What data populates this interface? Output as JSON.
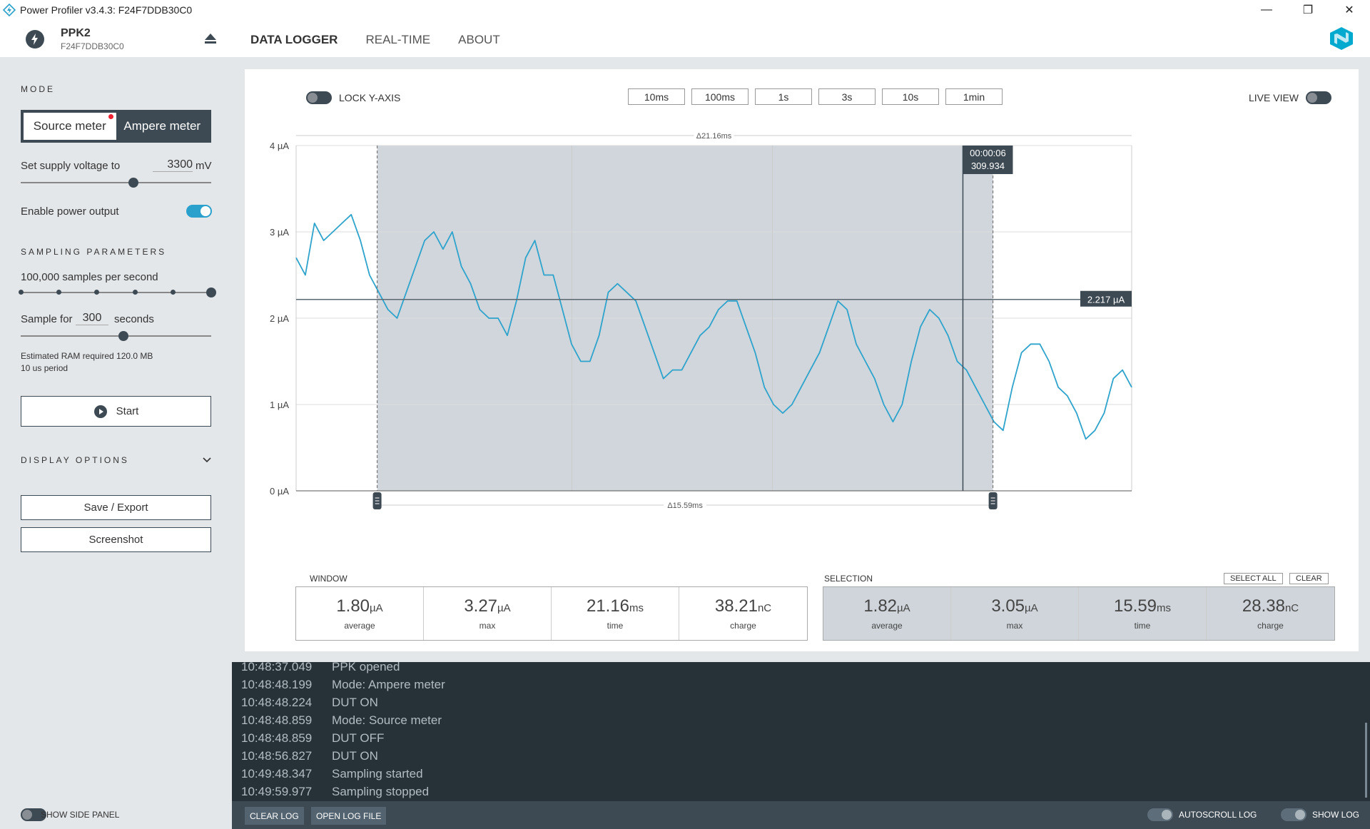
{
  "window": {
    "title": "Power Profiler v3.4.3: F24F7DDB30C0",
    "minimize": "—",
    "restore": "❐",
    "close": "✕"
  },
  "header": {
    "device_name": "PPK2",
    "device_serial": "F24F7DDB30C0",
    "tabs": [
      "DATA LOGGER",
      "REAL-TIME",
      "ABOUT"
    ],
    "active_tab": "DATA LOGGER"
  },
  "side": {
    "mode_title": "MODE",
    "mode_source": "Source meter",
    "mode_ampere": "Ampere meter",
    "supply_label": "Set supply voltage to",
    "supply_value": "3300",
    "supply_unit": "mV",
    "supply_slider_fraction": 0.59,
    "enable_power_label": "Enable power output",
    "enable_power_on": true,
    "sampling_title": "SAMPLING PARAMETERS",
    "samples_label": "100,000 samples per second",
    "samples_steps": 6,
    "samples_selected_step": 5,
    "sample_for_label": "Sample for",
    "sample_for_value": "300",
    "sample_for_unit": "seconds",
    "sample_for_fraction": 0.54,
    "ram_text": "Estimated RAM required 120.0 MB",
    "period_text": "10 us period",
    "start_label": "Start",
    "display_title": "DISPLAY OPTIONS",
    "save_label": "Save / Export",
    "screenshot_label": "Screenshot"
  },
  "chart_toolbar": {
    "lock_y_label": "LOCK Y-AXIS",
    "lock_y_on": false,
    "windows": [
      "10ms",
      "100ms",
      "1s",
      "3s",
      "10s",
      "1min"
    ],
    "live_view_label": "LIVE VIEW",
    "live_view_on": false
  },
  "chart_data": {
    "type": "line",
    "y_ticks": [
      "4 µA",
      "3 µA",
      "2 µA",
      "1 µA",
      "0 µA"
    ],
    "ylim": [
      0,
      4
    ],
    "unit": "µA",
    "x_span_ms": 21.16,
    "top_span_label": "Δ21.16ms",
    "bottom_span_label": "Δ15.59ms",
    "selection_fraction": [
      0.097,
      0.834
    ],
    "cursor_fraction": 0.798,
    "cursor_time": "00:00:06",
    "cursor_value": "309.934",
    "avg_line_value": 2.217,
    "avg_line_label": "2.217 µA",
    "color": "#2ea3cc",
    "series": [
      {
        "values": [
          2.7,
          2.5,
          3.1,
          2.9,
          3.0,
          3.1,
          3.2,
          2.9,
          2.5,
          2.3,
          2.1,
          2.0,
          2.3,
          2.6,
          2.9,
          3.0,
          2.8,
          3.0,
          2.6,
          2.4,
          2.1,
          2.0,
          2.0,
          1.8,
          2.2,
          2.7,
          2.9,
          2.5,
          2.5,
          2.1,
          1.7,
          1.5,
          1.5,
          1.8,
          2.3,
          2.4,
          2.3,
          2.2,
          1.9,
          1.6,
          1.3,
          1.4,
          1.4,
          1.6,
          1.8,
          1.9,
          2.1,
          2.2,
          2.2,
          1.9,
          1.6,
          1.2,
          1.0,
          0.9,
          1.0,
          1.2,
          1.4,
          1.6,
          1.9,
          2.2,
          2.1,
          1.7,
          1.5,
          1.3,
          1.0,
          0.8,
          1.0,
          1.5,
          1.9,
          2.1,
          2.0,
          1.8,
          1.5,
          1.4,
          1.2,
          1.0,
          0.8,
          0.7,
          1.2,
          1.6,
          1.7,
          1.7,
          1.5,
          1.2,
          1.1,
          0.9,
          0.6,
          0.7,
          0.9,
          1.3,
          1.4,
          1.2
        ]
      }
    ]
  },
  "window_stats": {
    "title": "WINDOW",
    "items": [
      {
        "value": "1.80",
        "unit": "µA",
        "caption": "average"
      },
      {
        "value": "3.27",
        "unit": "µA",
        "caption": "max"
      },
      {
        "value": "21.16",
        "unit": "ms",
        "caption": "time"
      },
      {
        "value": "38.21",
        "unit": "nC",
        "caption": "charge"
      }
    ]
  },
  "selection_stats": {
    "title": "SELECTION",
    "select_all": "SELECT ALL",
    "clear": "CLEAR",
    "items": [
      {
        "value": "1.82",
        "unit": "µA",
        "caption": "average"
      },
      {
        "value": "3.05",
        "unit": "µA",
        "caption": "max"
      },
      {
        "value": "15.59",
        "unit": "ms",
        "caption": "time"
      },
      {
        "value": "28.38",
        "unit": "nC",
        "caption": "charge"
      }
    ]
  },
  "log": [
    {
      "time": "10:48:37.049",
      "msg": "PPK opened"
    },
    {
      "time": "10:48:48.199",
      "msg": "Mode: Ampere meter"
    },
    {
      "time": "10:48:48.224",
      "msg": "DUT ON"
    },
    {
      "time": "10:48:48.859",
      "msg": "Mode: Source meter"
    },
    {
      "time": "10:48:48.859",
      "msg": "DUT OFF"
    },
    {
      "time": "10:48:56.827",
      "msg": "DUT ON"
    },
    {
      "time": "10:49:48.347",
      "msg": "Sampling started"
    },
    {
      "time": "10:49:59.977",
      "msg": "Sampling stopped"
    }
  ],
  "bottom": {
    "show_side_panel": "SHOW SIDE PANEL",
    "clear_log": "CLEAR LOG",
    "open_log_file": "OPEN LOG FILE",
    "autoscroll_log": "AUTOSCROLL LOG",
    "show_log": "SHOW LOG"
  }
}
